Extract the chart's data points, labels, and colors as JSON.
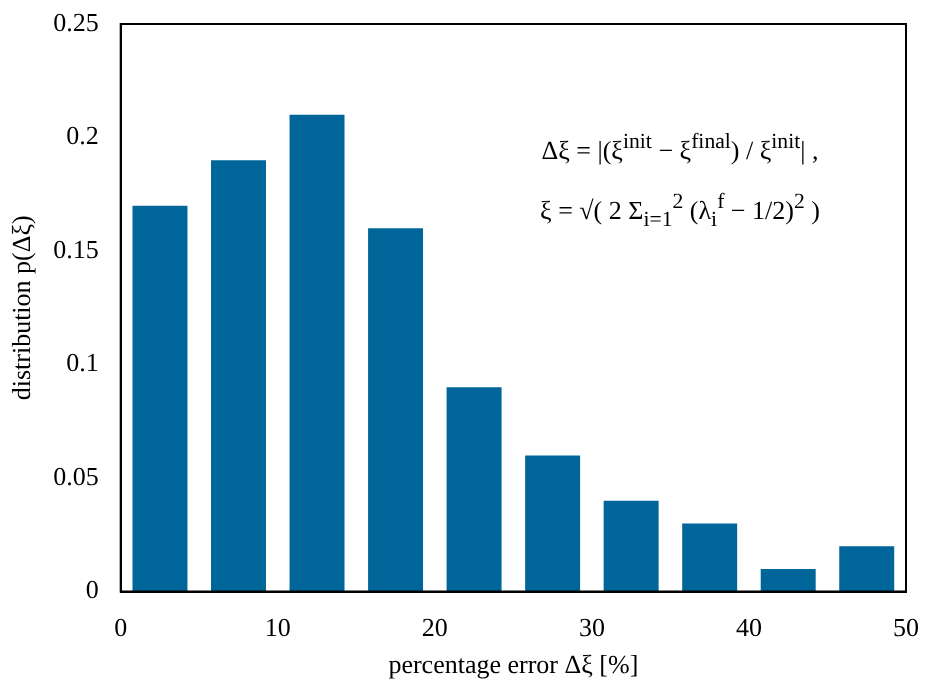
{
  "chart_data": {
    "type": "histogram",
    "xlabel": "percentage error Δξ [%]",
    "ylabel": "distribution p(Δξ)",
    "bins": [
      0,
      5,
      10,
      15,
      20,
      25,
      30,
      35,
      40,
      45,
      50
    ],
    "values": [
      0.17,
      0.19,
      0.21,
      0.16,
      0.09,
      0.06,
      0.04,
      0.03,
      0.01,
      0.02
    ],
    "color": "#006699",
    "xlim": [
      0,
      50
    ],
    "xticks": [
      0,
      10,
      20,
      30,
      40,
      50
    ],
    "ylim": [
      0,
      0.25
    ],
    "yticks": [
      0,
      0.05,
      0.1,
      0.15,
      0.2,
      0.25
    ],
    "grid": false,
    "annotations": [
      "Δξ = |(ξ$^{init}$ − ξ$^{final}$) / ξ$^{init}$| ,",
      "ξ = √( 2 Σ$_{i=1}$$^{2}$ (λ$_{i}$$^{f}$ − 1/2)$^{2}$ )"
    ]
  }
}
